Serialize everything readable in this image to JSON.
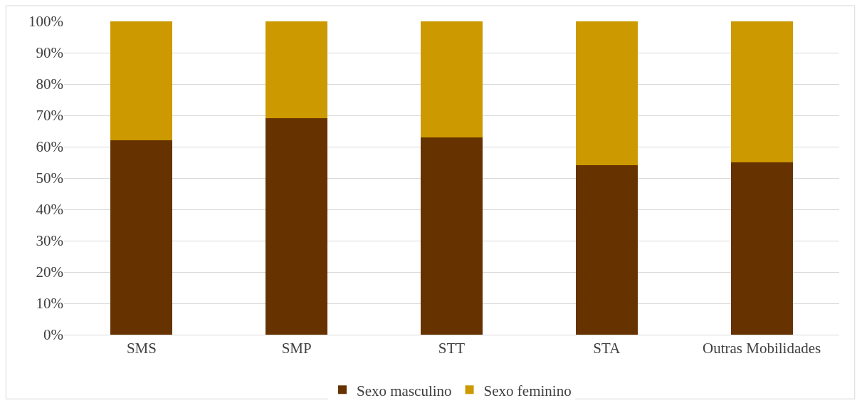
{
  "chart_data": {
    "type": "bar",
    "stacked": true,
    "categories": [
      "SMS",
      "SMP",
      "STT",
      "STA",
      "Outras Mobilidades"
    ],
    "series": [
      {
        "name": "Sexo masculino",
        "color": "#663300",
        "values": [
          62,
          69,
          63,
          54,
          55
        ]
      },
      {
        "name": "Sexo feminino",
        "color": "#cc9900",
        "values": [
          38,
          31,
          37,
          46,
          45
        ]
      }
    ],
    "ylim": [
      0,
      100
    ],
    "yticks": [
      {
        "value": 0,
        "label": "0%"
      },
      {
        "value": 10,
        "label": "10%"
      },
      {
        "value": 20,
        "label": "20%"
      },
      {
        "value": 30,
        "label": "30%"
      },
      {
        "value": 40,
        "label": "40%"
      },
      {
        "value": 50,
        "label": "50%"
      },
      {
        "value": 60,
        "label": "60%"
      },
      {
        "value": 70,
        "label": "70%"
      },
      {
        "value": 80,
        "label": "80%"
      },
      {
        "value": 90,
        "label": "90%"
      },
      {
        "value": 100,
        "label": "100%"
      }
    ],
    "grid": "y",
    "legend": "bottom"
  }
}
